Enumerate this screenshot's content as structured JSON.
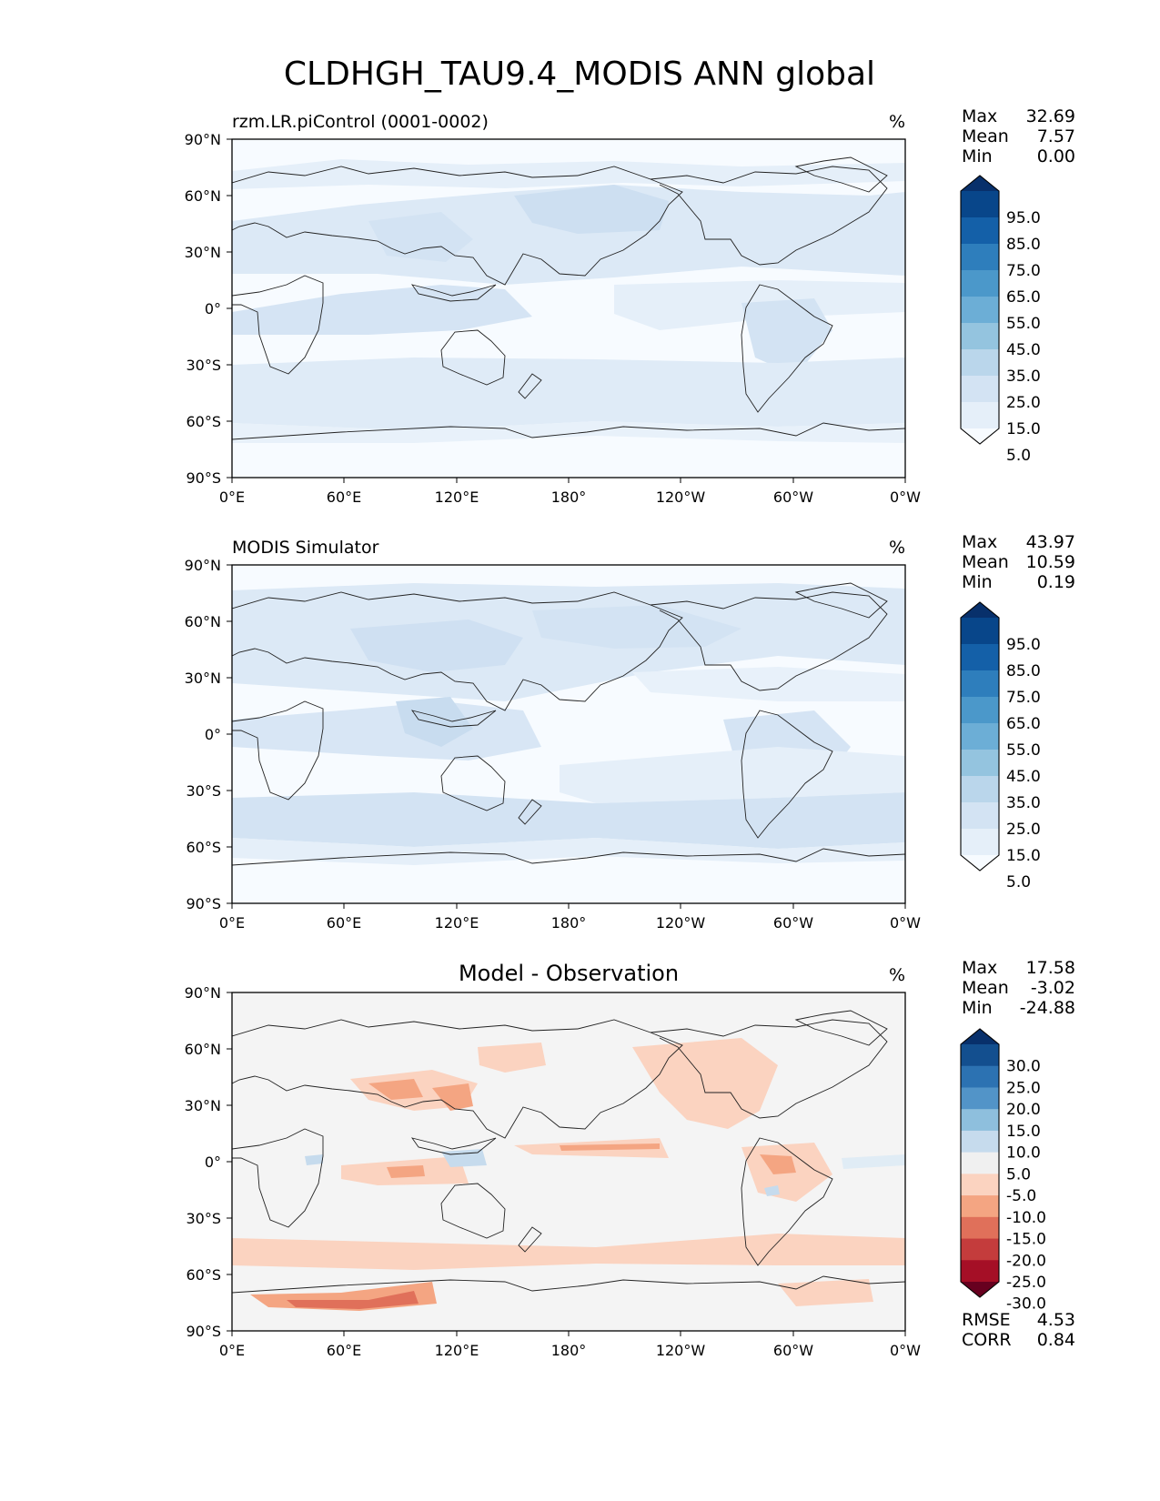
{
  "figure": {
    "title": "CLDHGH_TAU9.4_MODIS ANN global"
  },
  "chart_data": [
    {
      "type": "heatmap",
      "id": "model",
      "title_left": "rzm.LR.piControl (0001-0002)",
      "title_center": "",
      "units": "%",
      "stats": [
        {
          "label": "Max",
          "value": "32.69"
        },
        {
          "label": "Mean",
          "value": "7.57"
        },
        {
          "label": "Min",
          "value": "0.00"
        }
      ],
      "colorbar": {
        "labels": [
          "95.0",
          "85.0",
          "75.0",
          "65.0",
          "55.0",
          "45.0",
          "35.0",
          "25.0",
          "15.0",
          "5.0"
        ],
        "colors": [
          "#08306b",
          "#08468a",
          "#1460a8",
          "#2e7ebc",
          "#4b98ca",
          "#6caed6",
          "#94c4df",
          "#bad6eb",
          "#d3e3f3",
          "#e5eff9",
          "#f7fbff"
        ]
      },
      "metrics": [],
      "lat_ticks": [
        "90°N",
        "60°N",
        "30°N",
        "0°",
        "30°S",
        "60°S",
        "90°S"
      ],
      "lon_ticks": [
        "0°E",
        "60°E",
        "120°E",
        "180°",
        "120°W",
        "60°W",
        "0°W"
      ]
    },
    {
      "type": "heatmap",
      "id": "obs",
      "title_left": "MODIS Simulator",
      "title_center": "",
      "units": "%",
      "stats": [
        {
          "label": "Max",
          "value": "43.97"
        },
        {
          "label": "Mean",
          "value": "10.59"
        },
        {
          "label": "Min",
          "value": "0.19"
        }
      ],
      "colorbar": {
        "labels": [
          "95.0",
          "85.0",
          "75.0",
          "65.0",
          "55.0",
          "45.0",
          "35.0",
          "25.0",
          "15.0",
          "5.0"
        ],
        "colors": [
          "#08306b",
          "#08468a",
          "#1460a8",
          "#2e7ebc",
          "#4b98ca",
          "#6caed6",
          "#94c4df",
          "#bad6eb",
          "#d3e3f3",
          "#e5eff9",
          "#f7fbff"
        ]
      },
      "metrics": [],
      "lat_ticks": [
        "90°N",
        "60°N",
        "30°N",
        "0°",
        "30°S",
        "60°S",
        "90°S"
      ],
      "lon_ticks": [
        "0°E",
        "60°E",
        "120°E",
        "180°",
        "120°W",
        "60°W",
        "0°W"
      ]
    },
    {
      "type": "heatmap",
      "id": "diff",
      "title_left": "",
      "title_center": "Model - Observation",
      "units": "%",
      "stats": [
        {
          "label": "Max",
          "value": "17.58"
        },
        {
          "label": "Mean",
          "value": "-3.02"
        },
        {
          "label": "Min",
          "value": "-24.88"
        }
      ],
      "colorbar": {
        "labels": [
          "30.0",
          "25.0",
          "20.0",
          "15.0",
          "10.0",
          "5.0",
          "-5.0",
          "-10.0",
          "-15.0",
          "-20.0",
          "-25.0",
          "-30.0"
        ],
        "colors": [
          "#08306b",
          "#134f8f",
          "#2c72b2",
          "#5294c8",
          "#8ebfdd",
          "#c6dbed",
          "#f0f0f0",
          "#fbd3c0",
          "#f4a582",
          "#e0705a",
          "#c43c3c",
          "#a50f26",
          "#67001f"
        ]
      },
      "metrics": [
        {
          "label": "RMSE",
          "value": "4.53"
        },
        {
          "label": "CORR",
          "value": "0.84"
        }
      ],
      "lat_ticks": [
        "90°N",
        "60°N",
        "30°N",
        "0°",
        "30°S",
        "60°S",
        "90°S"
      ],
      "lon_ticks": [
        "0°E",
        "60°E",
        "120°E",
        "180°",
        "120°W",
        "60°W",
        "0°W"
      ]
    }
  ]
}
